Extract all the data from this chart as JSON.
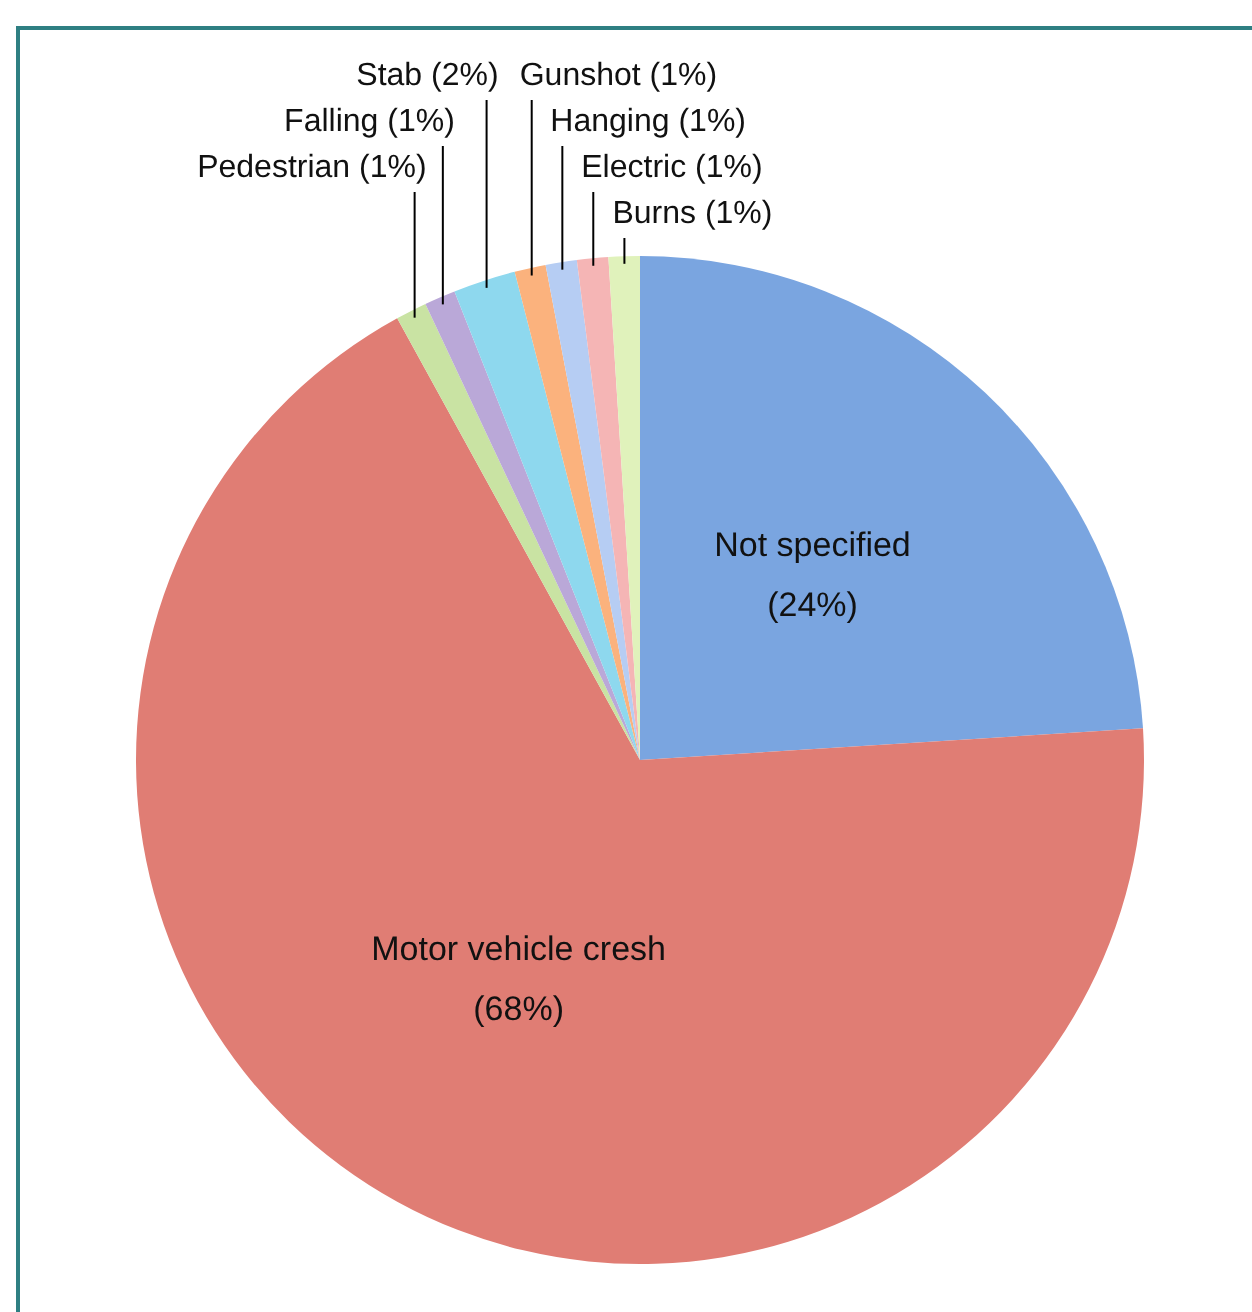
{
  "chart_data": {
    "type": "pie",
    "categories": [
      "Not specified",
      "Motor vehicle cresh",
      "Pedestrian",
      "Falling",
      "Stab",
      "Gunshot",
      "Hanging",
      "Electric",
      "Burns"
    ],
    "values": [
      24,
      68,
      1,
      1,
      2,
      1,
      1,
      1,
      1
    ],
    "colors": [
      "#7aa5e0",
      "#e07d74",
      "#c9e3a3",
      "#baa8d8",
      "#8ed8ee",
      "#fbb27d",
      "#b6cdf3",
      "#f5b5b5",
      "#e0f2bb"
    ],
    "value_labels": [
      "(24%)",
      "(68%)",
      "(1%)",
      "(1%)",
      "(2%)",
      "(1%)",
      "(1%)",
      "(1%)",
      "(1%)"
    ],
    "legend": false
  }
}
